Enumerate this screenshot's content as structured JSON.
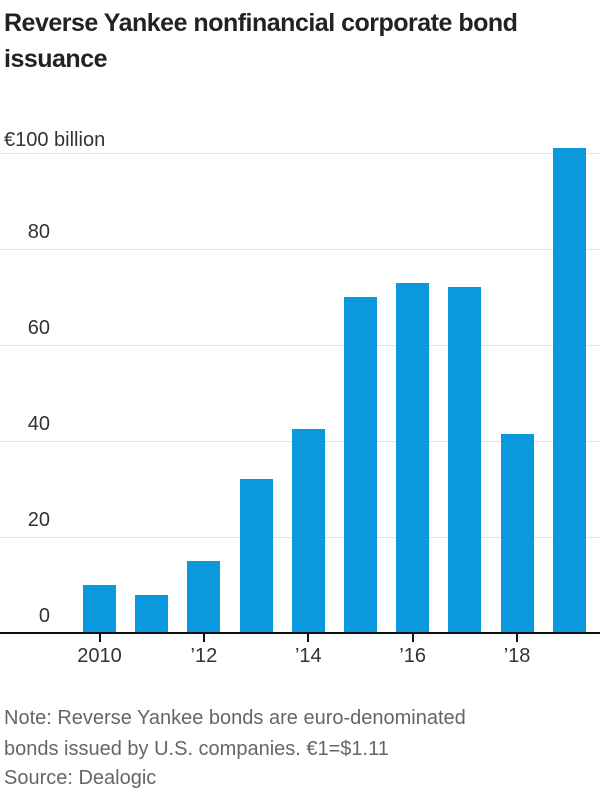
{
  "chart_data": {
    "type": "bar",
    "title": "Reverse Yankee nonfinancial corporate bond issuance",
    "unit_label": "€100 billion",
    "xlabel": "",
    "ylabel": "€ billion",
    "categories": [
      "2010",
      "2011",
      "2012",
      "2013",
      "2014",
      "2015",
      "2016",
      "2017",
      "2018",
      "2019"
    ],
    "values": [
      10,
      8,
      15,
      32,
      42.5,
      70,
      73,
      72,
      41.5,
      101
    ],
    "ylim": [
      0,
      100
    ],
    "yticks": [
      {
        "value": 0,
        "label": "0"
      },
      {
        "value": 20,
        "label": "20"
      },
      {
        "value": 40,
        "label": "40"
      },
      {
        "value": 60,
        "label": "60"
      },
      {
        "value": 80,
        "label": "80"
      },
      {
        "value": 100,
        "label": "€100 billion"
      }
    ],
    "xticks": [
      {
        "index": 0,
        "label": "2010"
      },
      {
        "index": 2,
        "label": "’12"
      },
      {
        "index": 4,
        "label": "’14"
      },
      {
        "index": 6,
        "label": "’16"
      },
      {
        "index": 8,
        "label": "’18"
      }
    ],
    "grid": true,
    "legend_position": "none",
    "bar_color": "#0a99dc",
    "gridline_color": "#e2e2e2",
    "axis_color": "#111111"
  },
  "footer": {
    "note_lines": [
      "Note: Reverse Yankee bonds are euro-denominated",
      "bonds issued by U.S. companies. €1=$1.11"
    ],
    "source": "Source: Dealogic"
  }
}
